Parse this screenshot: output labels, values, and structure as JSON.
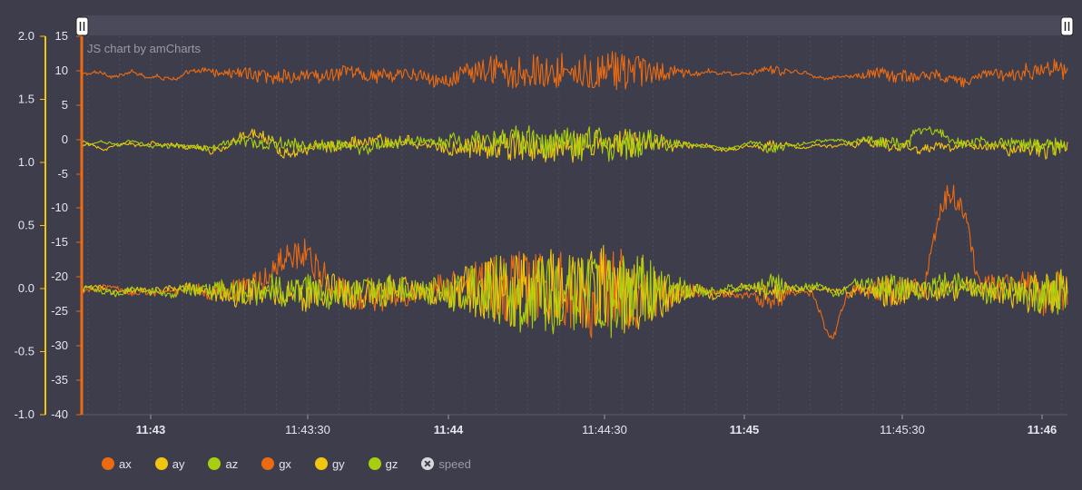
{
  "credit": "JS chart by amCharts",
  "colors": {
    "background": "#3d3d4c",
    "orange": "#ec6b12",
    "yellow": "#f2c511",
    "green": "#a8cf0f",
    "axis_left": "#f2c511",
    "axis_right": "#ec6b12"
  },
  "chart_data": {
    "type": "line",
    "x_ticks": [
      {
        "label": "11:43",
        "bold": true
      },
      {
        "label": "11:43:30",
        "bold": false
      },
      {
        "label": "11:44",
        "bold": true
      },
      {
        "label": "11:44:30",
        "bold": false
      },
      {
        "label": "11:45",
        "bold": true
      },
      {
        "label": "11:45:30",
        "bold": false
      },
      {
        "label": "11:46",
        "bold": true
      }
    ],
    "x_range_seconds": [
      "11:42:37",
      "11:46:05"
    ],
    "y_left": {
      "ticks": [
        "2.0",
        "1.5",
        "1.0",
        "0.5",
        "0.0",
        "-0.5",
        "-1.0"
      ],
      "min": -1.0,
      "max": 2.0
    },
    "y_right_top": {
      "ticks": [
        "15",
        "10",
        "5",
        "0",
        "-5"
      ]
    },
    "y_right_bottom": {
      "ticks": [
        "-10",
        "-15",
        "-20",
        "-25",
        "-30",
        "-35",
        "-40"
      ]
    },
    "grid": true,
    "scrollbar": true,
    "legend_position": "bottom-left",
    "series": [
      {
        "name": "ax",
        "color": "#ec6b12",
        "baseline": 9.5,
        "panel": "top"
      },
      {
        "name": "ay",
        "color": "#f2c511",
        "baseline": -1.0,
        "panel": "top"
      },
      {
        "name": "az",
        "color": "#a8cf0f",
        "baseline": -0.5,
        "panel": "top"
      },
      {
        "name": "gx",
        "color": "#ec6b12",
        "baseline": -22,
        "panel": "bottom"
      },
      {
        "name": "gy",
        "color": "#f2c511",
        "baseline": -22,
        "panel": "bottom"
      },
      {
        "name": "gz",
        "color": "#a8cf0f",
        "baseline": -22,
        "panel": "bottom"
      },
      {
        "name": "speed",
        "color": "#d8d8de",
        "disabled": true
      }
    ]
  }
}
